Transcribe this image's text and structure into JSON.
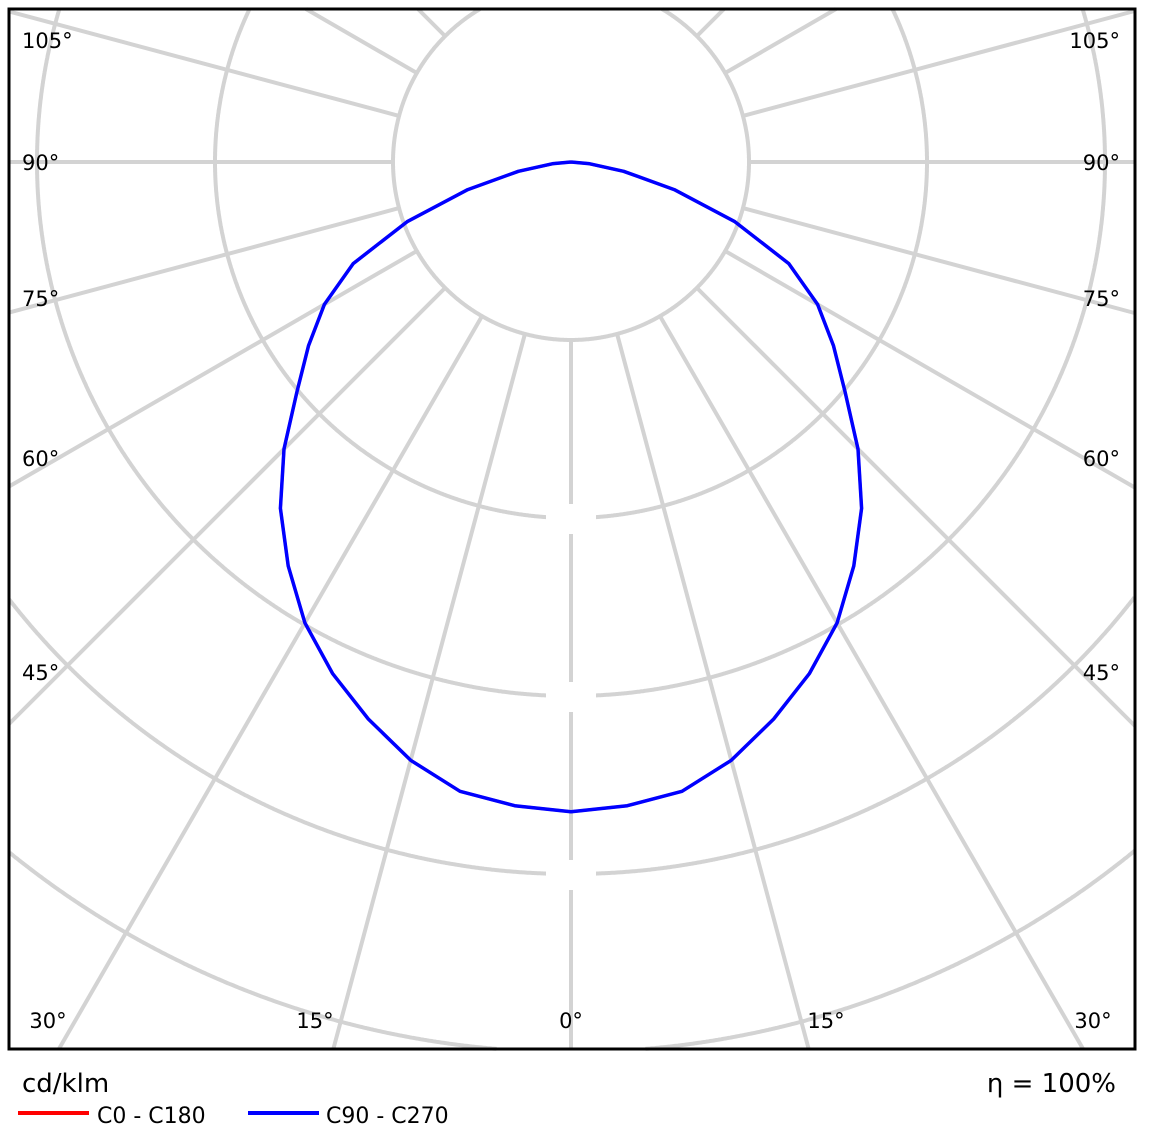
{
  "chart_data": {
    "type": "polar",
    "unit_label": "cd/klm",
    "efficiency_label": "η = 100%",
    "angle_tick_labels_side": [
      "105°",
      "90°",
      "75°",
      "60°",
      "45°"
    ],
    "angle_tick_labels_bottom": [
      "30°",
      "15°",
      "0°",
      "15°",
      "30°"
    ],
    "angle_grid_step_deg": 15,
    "grid": true,
    "legend_placement": "bottom-left",
    "series": [
      {
        "name": "C0 - C180",
        "color": "#ff0000",
        "angles_deg": [
          0,
          5,
          10,
          15,
          20,
          25,
          30,
          35,
          40,
          45,
          50,
          55,
          60,
          65,
          70,
          75,
          80,
          85,
          90
        ],
        "values": [
          365,
          363,
          359,
          348,
          333,
          317,
          299,
          277,
          254,
          228,
          201,
          180,
          160,
          135,
          98,
          60,
          30,
          10,
          0
        ]
      },
      {
        "name": "C90 - C270",
        "color": "#0000ff",
        "angles_deg": [
          0,
          5,
          10,
          15,
          20,
          25,
          30,
          35,
          40,
          45,
          50,
          55,
          60,
          65,
          70,
          75,
          80,
          85,
          90
        ],
        "values": [
          365,
          363,
          359,
          348,
          333,
          317,
          299,
          277,
          254,
          228,
          201,
          180,
          160,
          135,
          98,
          60,
          30,
          10,
          0
        ]
      }
    ],
    "radial_step": 100
  }
}
